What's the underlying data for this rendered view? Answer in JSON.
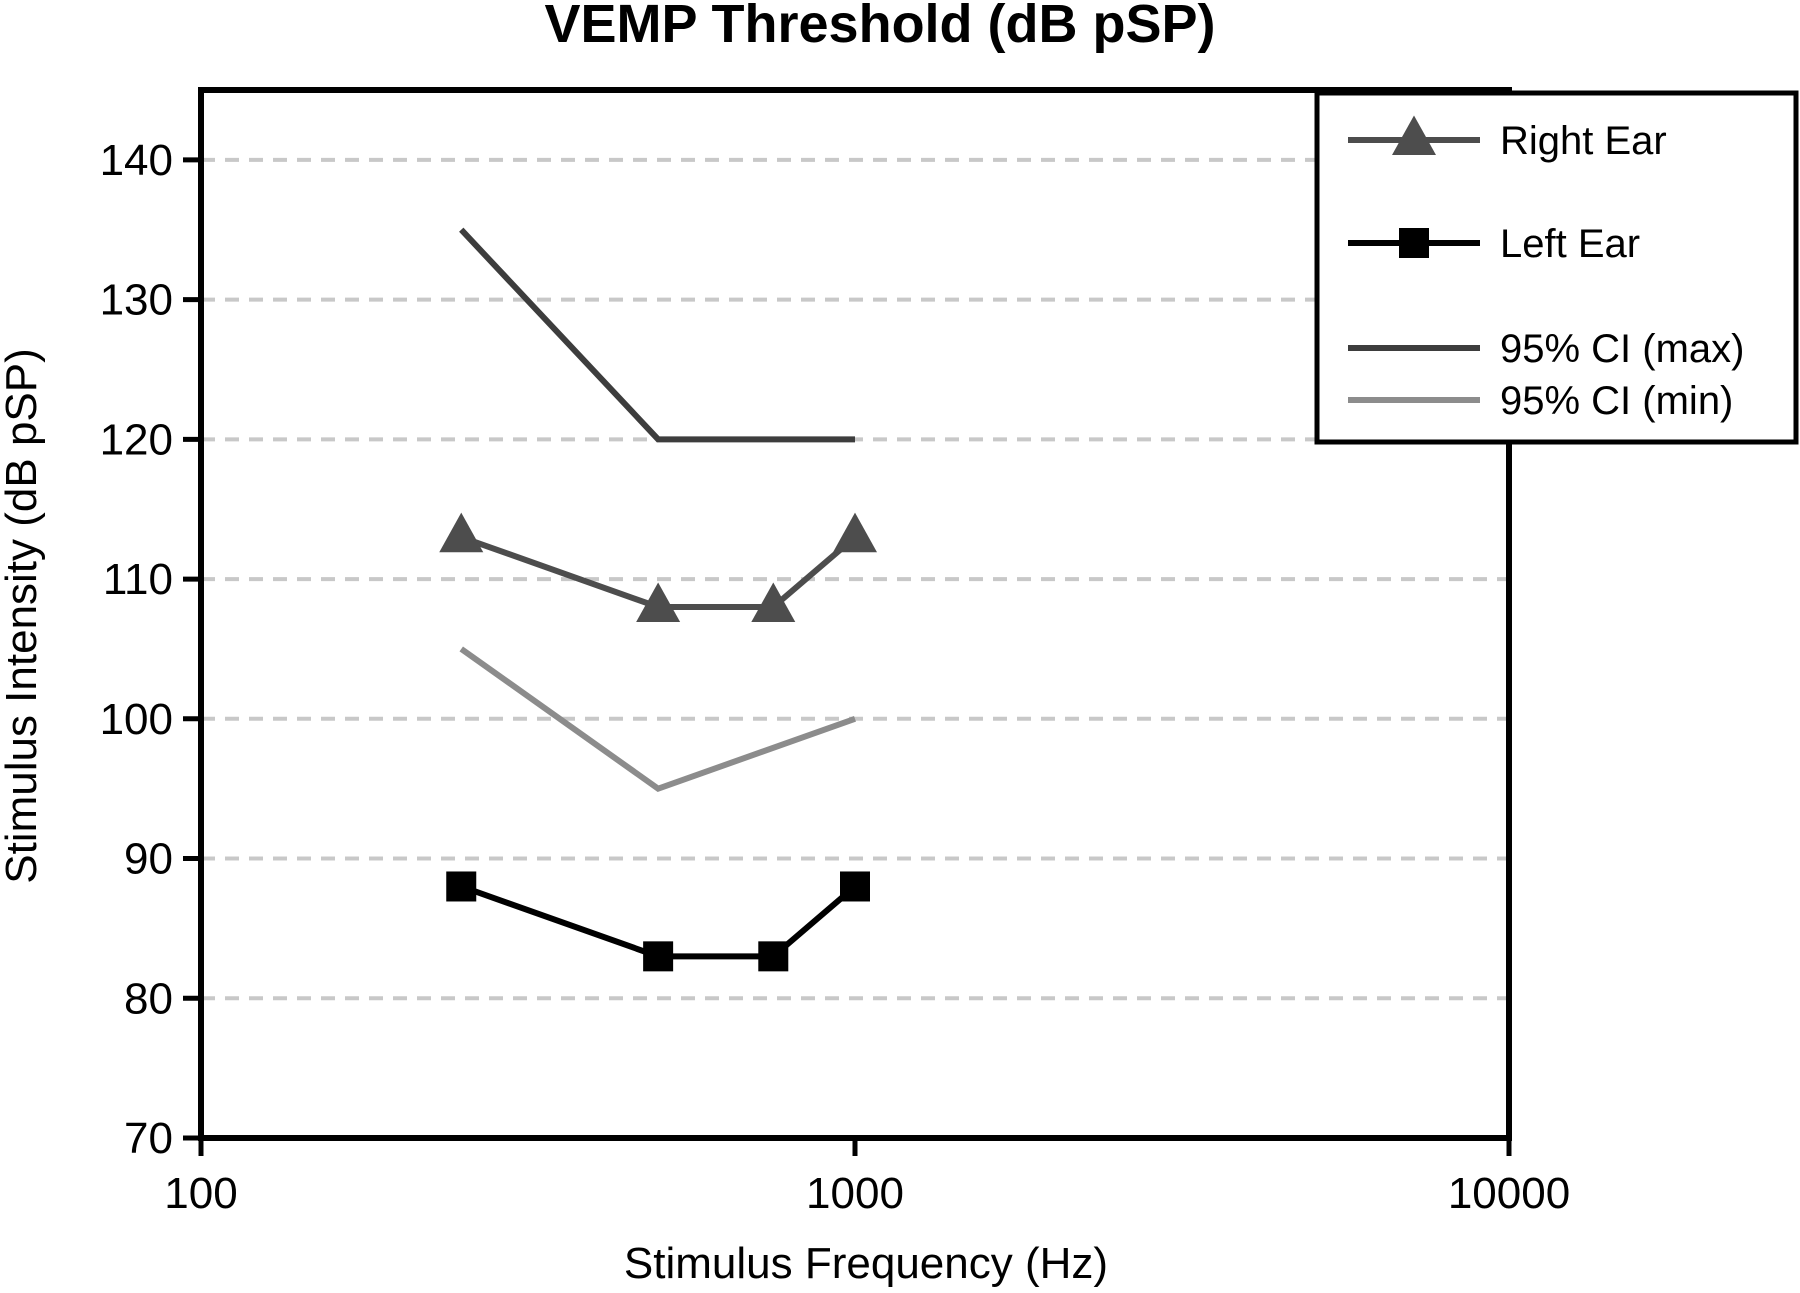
{
  "chart_data": {
    "type": "line",
    "title": "VEMP Threshold (dB pSP)",
    "xlabel": "Stimulus Frequency (Hz)",
    "ylabel": "Stimulus Intensity (dB pSP)",
    "xscale": "log",
    "xlim": [
      100,
      10000
    ],
    "ylim": [
      70,
      145
    ],
    "xticks": [
      100,
      1000,
      10000
    ],
    "xtick_labels": [
      "100",
      "1000",
      "10000"
    ],
    "yticks": [
      70,
      80,
      90,
      100,
      110,
      120,
      130,
      140
    ],
    "ytick_labels": [
      "70",
      "80",
      "90",
      "100",
      "110",
      "120",
      "130",
      "140"
    ],
    "grid": "horizontal dashed",
    "legend_position": "top-right",
    "series": [
      {
        "name": "Right Ear",
        "marker": "triangle",
        "color": "#4d4d4d",
        "x": [
          250,
          500,
          750,
          1000
        ],
        "y": [
          113,
          108,
          108,
          113
        ]
      },
      {
        "name": "Left Ear",
        "marker": "square",
        "color": "#000000",
        "x": [
          250,
          500,
          750,
          1000
        ],
        "y": [
          88,
          83,
          83,
          88
        ]
      },
      {
        "name": "95% CI (max)",
        "marker": "none",
        "color": "#3d3d3d",
        "x": [
          250,
          500,
          1000
        ],
        "y": [
          135,
          120,
          120
        ]
      },
      {
        "name": "95% CI (min)",
        "marker": "none",
        "color": "#8c8c8c",
        "x": [
          250,
          500,
          1000
        ],
        "y": [
          105,
          95,
          100
        ]
      }
    ]
  }
}
